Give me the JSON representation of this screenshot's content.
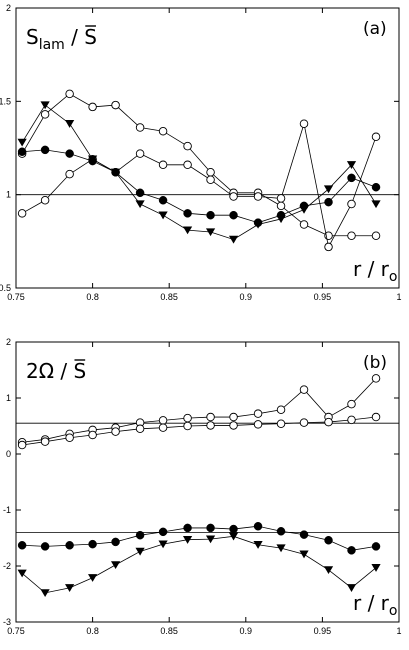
{
  "chart_data": [
    {
      "type": "line",
      "panel_label": "(a)",
      "ylabel_main": "S",
      "ylabel_sub": "lam",
      "ylabel_tail": " / ",
      "ylabel_over": "S",
      "xlabel_main": "r / r",
      "xlabel_sub": "o",
      "xlim": [
        0.75,
        1.0
      ],
      "ylim": [
        0.5,
        2.0
      ],
      "xticks": [
        0.75,
        0.8,
        0.85,
        0.9,
        0.95,
        1.0
      ],
      "xtick_labels": [
        "0.75",
        "0.8",
        "0.85",
        "0.9",
        "0.95",
        "1"
      ],
      "yticks": [
        0.5,
        1.0,
        1.5,
        2.0
      ],
      "ytick_labels": [
        "0.5",
        "1",
        "1.5",
        "2"
      ],
      "reference_lines": [
        1.0
      ],
      "series": [
        {
          "marker": "open-circle",
          "x": [
            0.754,
            0.769,
            0.785,
            0.8,
            0.815,
            0.831,
            0.846,
            0.862,
            0.877,
            0.892,
            0.908,
            0.923,
            0.938,
            0.954,
            0.969,
            0.985
          ],
          "y": [
            1.22,
            1.43,
            1.54,
            1.47,
            1.48,
            1.36,
            1.34,
            1.26,
            1.12,
            1.01,
            1.01,
            0.94,
            0.84,
            0.78,
            0.78,
            0.78
          ]
        },
        {
          "marker": "open-circle",
          "x": [
            0.754,
            0.769,
            0.785,
            0.8,
            0.815,
            0.831,
            0.846,
            0.862,
            0.877,
            0.892,
            0.908,
            0.923,
            0.938,
            0.954,
            0.969,
            0.985
          ],
          "y": [
            0.9,
            0.97,
            1.11,
            1.19,
            1.12,
            1.22,
            1.16,
            1.16,
            1.08,
            0.99,
            0.99,
            0.98,
            1.38,
            0.72,
            0.95,
            1.31
          ]
        },
        {
          "marker": "filled-circle",
          "x": [
            0.754,
            0.769,
            0.785,
            0.8,
            0.815,
            0.831,
            0.846,
            0.862,
            0.877,
            0.892,
            0.908,
            0.923,
            0.938,
            0.954,
            0.969,
            0.985
          ],
          "y": [
            1.23,
            1.24,
            1.22,
            1.18,
            1.12,
            1.01,
            0.97,
            0.9,
            0.89,
            0.89,
            0.85,
            0.89,
            0.94,
            0.96,
            1.09,
            1.04
          ]
        },
        {
          "marker": "filled-triangle-down",
          "x": [
            0.754,
            0.769,
            0.785,
            0.8,
            0.815,
            0.831,
            0.846,
            0.862,
            0.877,
            0.892,
            0.908,
            0.923,
            0.938,
            0.954,
            0.969,
            0.985
          ],
          "y": [
            1.28,
            1.48,
            1.38,
            1.19,
            1.12,
            0.95,
            0.89,
            0.81,
            0.8,
            0.76,
            0.84,
            0.87,
            0.92,
            1.03,
            1.16,
            0.95
          ]
        }
      ]
    },
    {
      "type": "line",
      "panel_label": "(b)",
      "ylabel_main": "2Ω / ",
      "ylabel_over": "S",
      "xlabel_main": "r / r",
      "xlabel_sub": "o",
      "xlim": [
        0.75,
        1.0
      ],
      "ylim": [
        -3.0,
        2.0
      ],
      "xticks": [
        0.75,
        0.8,
        0.85,
        0.9,
        0.95,
        1.0
      ],
      "xtick_labels": [
        "0.75",
        "0.8",
        "0.85",
        "0.9",
        "0.95",
        "1"
      ],
      "yticks": [
        -3,
        -2,
        -1,
        0,
        1,
        2
      ],
      "ytick_labels": [
        "-3",
        "-2",
        "-1",
        "0",
        "1",
        "2"
      ],
      "reference_lines": [
        0.55,
        -1.4
      ],
      "series": [
        {
          "marker": "open-circle",
          "x": [
            0.754,
            0.769,
            0.785,
            0.8,
            0.815,
            0.831,
            0.846,
            0.862,
            0.877,
            0.892,
            0.908,
            0.923,
            0.938,
            0.954,
            0.969,
            0.985
          ],
          "y": [
            0.21,
            0.26,
            0.36,
            0.43,
            0.47,
            0.56,
            0.6,
            0.64,
            0.66,
            0.66,
            0.72,
            0.79,
            1.15,
            0.66,
            0.89,
            1.35
          ]
        },
        {
          "marker": "open-circle",
          "x": [
            0.754,
            0.769,
            0.785,
            0.8,
            0.815,
            0.831,
            0.846,
            0.862,
            0.877,
            0.892,
            0.908,
            0.923,
            0.938,
            0.954,
            0.969,
            0.985
          ],
          "y": [
            0.16,
            0.22,
            0.29,
            0.34,
            0.4,
            0.45,
            0.47,
            0.5,
            0.51,
            0.51,
            0.53,
            0.54,
            0.56,
            0.57,
            0.61,
            0.66
          ]
        },
        {
          "marker": "filled-circle",
          "x": [
            0.754,
            0.769,
            0.785,
            0.8,
            0.815,
            0.831,
            0.846,
            0.862,
            0.877,
            0.892,
            0.908,
            0.923,
            0.938,
            0.954,
            0.969,
            0.985
          ],
          "y": [
            -1.63,
            -1.65,
            -1.63,
            -1.61,
            -1.57,
            -1.45,
            -1.39,
            -1.32,
            -1.32,
            -1.34,
            -1.29,
            -1.38,
            -1.44,
            -1.54,
            -1.72,
            -1.65
          ]
        },
        {
          "marker": "filled-triangle-down",
          "x": [
            0.754,
            0.769,
            0.785,
            0.8,
            0.815,
            0.831,
            0.846,
            0.862,
            0.877,
            0.892,
            0.908,
            0.923,
            0.938,
            0.954,
            0.969,
            0.985
          ],
          "y": [
            -2.13,
            -2.48,
            -2.39,
            -2.21,
            -1.98,
            -1.74,
            -1.61,
            -1.53,
            -1.52,
            -1.47,
            -1.62,
            -1.68,
            -1.79,
            -2.07,
            -2.39,
            -2.03
          ]
        }
      ]
    }
  ]
}
